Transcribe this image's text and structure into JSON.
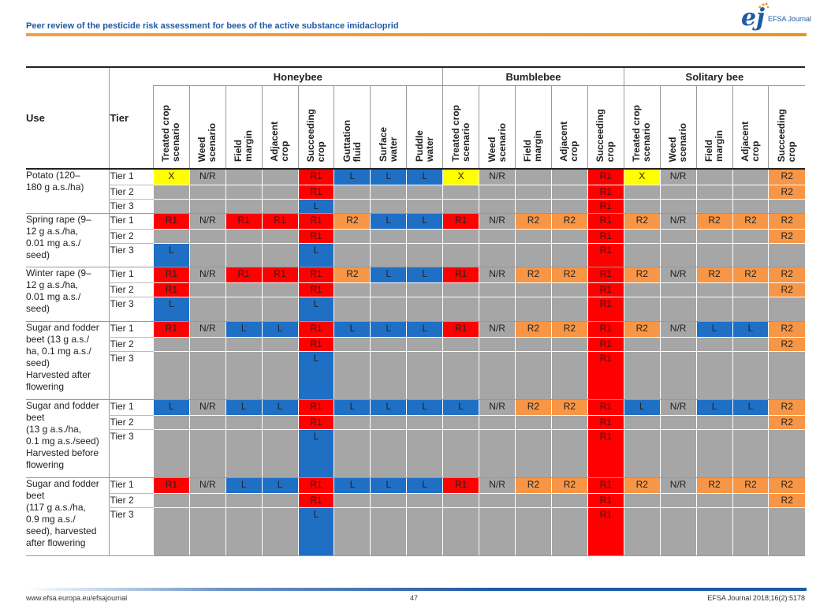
{
  "header": {
    "title": "Peer review of the pesticide risk assessment for bees of the active substance imidacloprid",
    "logo_mark": "ej",
    "logo_text": "EFSA Journal"
  },
  "colors": {
    "X": "#ffff00",
    "N/R": "#a6a6a6",
    "R1": "#ff0000",
    "R2": "#f79646",
    "L": "#1f6fc5",
    "": "#a6a6a6"
  },
  "table": {
    "use_header": "Use",
    "tier_header": "Tier",
    "groups": [
      {
        "label": "Honeybee",
        "columns": [
          "Treated crop scenario",
          "Weed scenario",
          "Field margin",
          "Adjacent crop",
          "Succeeding crop",
          "Guttation fluid",
          "Surface water",
          "Puddle water"
        ]
      },
      {
        "label": "Bumblebee",
        "columns": [
          "Treated crop scenario",
          "Weed scenario",
          "Field margin",
          "Adjacent crop",
          "Succeeding crop"
        ]
      },
      {
        "label": "Solitary bee",
        "columns": [
          "Treated crop scenario",
          "Weed scenario",
          "Field margin",
          "Adjacent crop",
          "Succeeding crop"
        ]
      }
    ],
    "column_headers_wrapped": [
      [
        "Treated crop",
        "scenario"
      ],
      [
        "Weed",
        "scenario"
      ],
      [
        "Field",
        "margin"
      ],
      [
        "Adjacent",
        "crop"
      ],
      [
        "Succeeding",
        "crop"
      ],
      [
        "Guttation",
        "fluid"
      ],
      [
        "Surface",
        "water"
      ],
      [
        "Puddle",
        "water"
      ],
      [
        "Treated crop",
        "scenario"
      ],
      [
        "Weed",
        "scenario"
      ],
      [
        "Field",
        "margin"
      ],
      [
        "Adjacent",
        "crop"
      ],
      [
        "Succeeding",
        "crop"
      ],
      [
        "Treated crop",
        "scenario"
      ],
      [
        "Weed",
        "scenario"
      ],
      [
        "Field",
        "margin"
      ],
      [
        "Adjacent",
        "crop"
      ],
      [
        "Succeeding",
        "crop"
      ]
    ],
    "uses": [
      {
        "use_lines": [
          "Potato (120–",
          "180 g a.s./ha)"
        ],
        "rows": [
          {
            "tier": "Tier 1",
            "cells": [
              "X",
              "N/R",
              "",
              "",
              "R1",
              "L",
              "L",
              "L",
              "X",
              "N/R",
              "",
              "",
              "R1",
              "X",
              "N/R",
              "",
              "",
              "R2"
            ]
          },
          {
            "tier": "Tier 2",
            "cells": [
              "",
              "",
              "",
              "",
              "R1",
              "",
              "",
              "",
              "",
              "",
              "",
              "",
              "R1",
              "",
              "",
              "",
              "",
              "R2"
            ]
          },
          {
            "tier": "Tier 3",
            "cells": [
              "",
              "",
              "",
              "",
              "L",
              "",
              "",
              "",
              "",
              "",
              "",
              "",
              "R1",
              "",
              "",
              "",
              "",
              ""
            ]
          }
        ]
      },
      {
        "use_lines": [
          "Spring rape (9–",
          "12 g a.s./ha,",
          "0.01 mg a.s./",
          "seed)"
        ],
        "rows": [
          {
            "tier": "Tier 1",
            "cells": [
              "R1",
              "N/R",
              "R1",
              "R1",
              "R1",
              "R2",
              "L",
              "L",
              "R1",
              "N/R",
              "R2",
              "R2",
              "R1",
              "R2",
              "N/R",
              "R2",
              "R2",
              "R2"
            ]
          },
          {
            "tier": "Tier 2",
            "cells": [
              "",
              "",
              "",
              "",
              "R1",
              "",
              "",
              "",
              "",
              "",
              "",
              "",
              "R1",
              "",
              "",
              "",
              "",
              "R2"
            ]
          },
          {
            "tier": "Tier 3",
            "cells": [
              "L",
              "",
              "",
              "",
              "L",
              "",
              "",
              "",
              "",
              "",
              "",
              "",
              "R1",
              "",
              "",
              "",
              "",
              ""
            ]
          }
        ]
      },
      {
        "use_lines": [
          "Winter rape (9–",
          "12 g a.s./ha,",
          "0.01 mg a.s./",
          "seed)"
        ],
        "rows": [
          {
            "tier": "Tier 1",
            "cells": [
              "R1",
              "N/R",
              "R1",
              "R1",
              "R1",
              "R2",
              "L",
              "L",
              "R1",
              "N/R",
              "R2",
              "R2",
              "R1",
              "R2",
              "N/R",
              "R2",
              "R2",
              "R2"
            ]
          },
          {
            "tier": "Tier 2",
            "cells": [
              "R1",
              "",
              "",
              "",
              "R1",
              "",
              "",
              "",
              "",
              "",
              "",
              "",
              "R1",
              "",
              "",
              "",
              "",
              "R2"
            ]
          },
          {
            "tier": "Tier 3",
            "cells": [
              "L",
              "",
              "",
              "",
              "L",
              "",
              "",
              "",
              "",
              "",
              "",
              "",
              "R1",
              "",
              "",
              "",
              "",
              ""
            ]
          }
        ]
      },
      {
        "use_lines": [
          "Sugar and fodder",
          "beet (13 g a.s./",
          "ha, 0.1 mg a.s./",
          "seed)",
          "Harvested after",
          "flowering"
        ],
        "rows": [
          {
            "tier": "Tier 1",
            "cells": [
              "R1",
              "N/R",
              "L",
              "L",
              "R1",
              "L",
              "L",
              "L",
              "R1",
              "N/R",
              "R2",
              "R2",
              "R1",
              "R2",
              "N/R",
              "L",
              "L",
              "R2"
            ]
          },
          {
            "tier": "Tier 2",
            "cells": [
              "",
              "",
              "",
              "",
              "R1",
              "",
              "",
              "",
              "",
              "",
              "",
              "",
              "R1",
              "",
              "",
              "",
              "",
              "R2"
            ]
          },
          {
            "tier": "Tier 3",
            "cells": [
              "",
              "",
              "",
              "",
              "L",
              "",
              "",
              "",
              "",
              "",
              "",
              "",
              "R1",
              "",
              "",
              "",
              "",
              ""
            ]
          }
        ]
      },
      {
        "use_lines": [
          "Sugar and fodder",
          "beet",
          "(13 g a.s./ha,",
          "0.1 mg a.s./seed)",
          "Harvested before",
          "flowering"
        ],
        "rows": [
          {
            "tier": "Tier 1",
            "cells": [
              "L",
              "N/R",
              "L",
              "L",
              "R1",
              "L",
              "L",
              "L",
              "L",
              "N/R",
              "R2",
              "R2",
              "R1",
              "L",
              "N/R",
              "L",
              "L",
              "R2"
            ]
          },
          {
            "tier": "Tier 2",
            "cells": [
              "",
              "",
              "",
              "",
              "R1",
              "",
              "",
              "",
              "",
              "",
              "",
              "",
              "R1",
              "",
              "",
              "",
              "",
              "R2"
            ]
          },
          {
            "tier": "Tier 3",
            "cells": [
              "",
              "",
              "",
              "",
              "L",
              "",
              "",
              "",
              "",
              "",
              "",
              "",
              "R1",
              "",
              "",
              "",
              "",
              ""
            ]
          }
        ]
      },
      {
        "use_lines": [
          "Sugar and fodder",
          "beet",
          "(117 g a.s./ha,",
          "0.9 mg a.s./",
          "seed), harvested",
          "after flowering"
        ],
        "rows": [
          {
            "tier": "Tier 1",
            "cells": [
              "R1",
              "N/R",
              "L",
              "L",
              "R1",
              "L",
              "L",
              "L",
              "R1",
              "N/R",
              "R2",
              "R2",
              "R1",
              "R2",
              "N/R",
              "R2",
              "R2",
              "R2"
            ]
          },
          {
            "tier": "Tier 2",
            "cells": [
              "",
              "",
              "",
              "",
              "R1",
              "",
              "",
              "",
              "",
              "",
              "",
              "",
              "R1",
              "",
              "",
              "",
              "",
              "R2"
            ]
          },
          {
            "tier": "Tier 3",
            "cells": [
              "",
              "",
              "",
              "",
              "L",
              "",
              "",
              "",
              "",
              "",
              "",
              "",
              "R1",
              "",
              "",
              "",
              "",
              ""
            ]
          }
        ]
      }
    ]
  },
  "footer": {
    "left": "www.efsa.europa.eu/efsajournal",
    "page": "47",
    "right": "EFSA Journal 2018;16(2):5178"
  }
}
